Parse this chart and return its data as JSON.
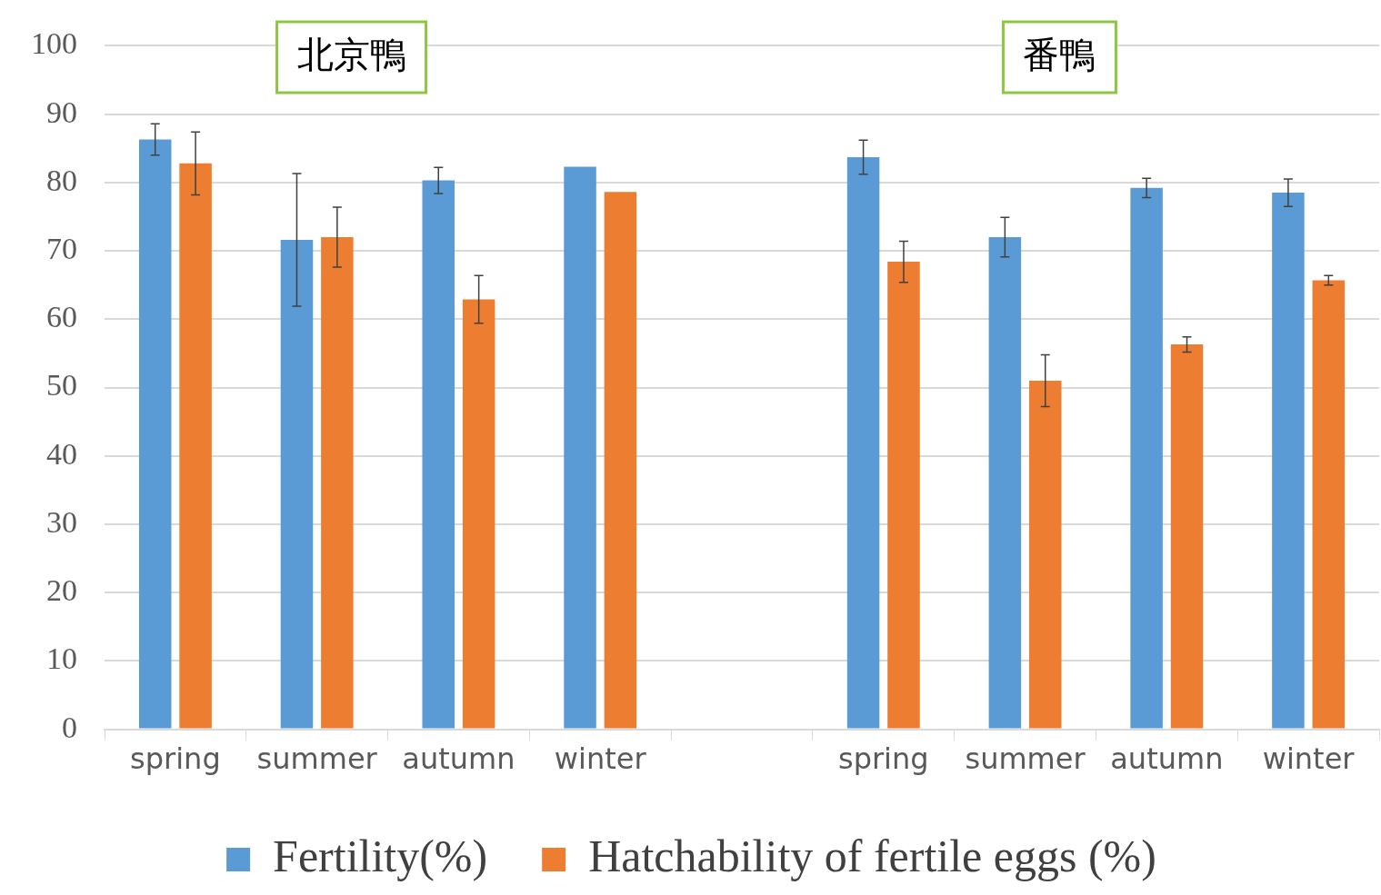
{
  "chart_data": {
    "type": "bar",
    "categories": [
      "spring",
      "summer",
      "autumn",
      "winter",
      null,
      "spring",
      "summer",
      "autumn",
      "winter"
    ],
    "series": [
      {
        "name": "Fertility(%)",
        "color": "#5b9bd5",
        "values": [
          86.3,
          71.6,
          80.3,
          82.3,
          null,
          83.7,
          72.0,
          79.2,
          78.5
        ],
        "errors": [
          2.3,
          9.7,
          1.9,
          null,
          null,
          2.5,
          2.9,
          1.4,
          2.0
        ]
      },
      {
        "name": "Hatchability of fertile eggs (%)",
        "color": "#ed7d31",
        "values": [
          82.8,
          72.0,
          62.9,
          78.6,
          null,
          68.4,
          51.0,
          56.3,
          65.7
        ],
        "errors": [
          4.6,
          4.4,
          3.5,
          null,
          null,
          3.0,
          3.8,
          1.1,
          0.7
        ]
      }
    ],
    "ylim": [
      0,
      100
    ],
    "yticks": [
      0,
      10,
      20,
      30,
      40,
      50,
      60,
      70,
      80,
      90,
      100
    ],
    "grid": "y",
    "legend": "bottom",
    "annotations": [
      "北京鴨",
      "番鴨"
    ]
  }
}
